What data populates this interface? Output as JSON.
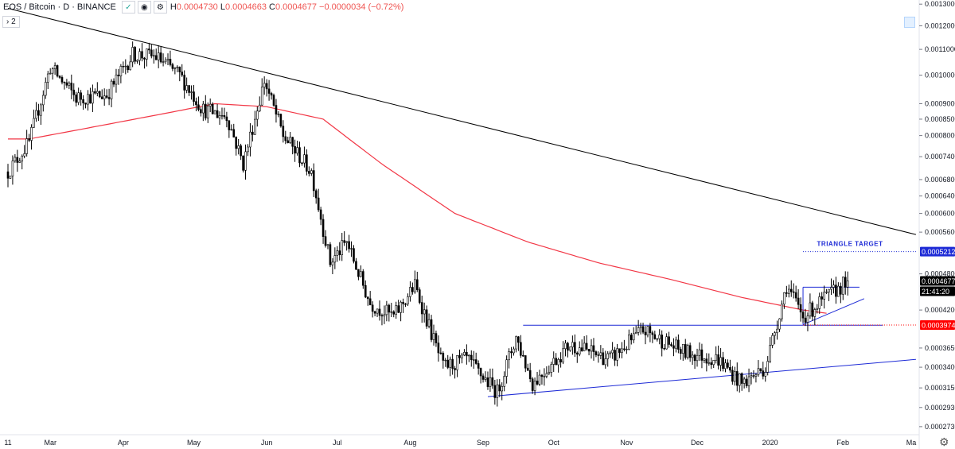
{
  "header": {
    "symbol": "EOS / Bitcoin · D · BINANCE",
    "icons": [
      "check-icon",
      "eye-icon",
      "settings-icon"
    ],
    "ohlc": [
      {
        "key": "H",
        "value": "0.0004730"
      },
      {
        "key": "L",
        "value": "0.0004663"
      },
      {
        "key": "C",
        "value": "0.0004677"
      }
    ],
    "change": "−0.0000034 (−0.72%)",
    "collapse_label": "› 2"
  },
  "colors": {
    "up": "#000000",
    "ma": "#f23645",
    "trend": "#000000",
    "pattern": "#1e2bd6",
    "target": "#1e2bd6",
    "price_badge": "#000000",
    "stop": "#ff0000"
  },
  "chart_data": {
    "type": "candlestick",
    "scale": "log",
    "ylim": [
      0.000265,
      0.00132
    ],
    "xlabel": "",
    "ylabel": "",
    "yticks": [
      "0.0013000",
      "0.0012000",
      "0.0011000",
      "0.0010000",
      "0.0009000",
      "0.0008500",
      "0.0008000",
      "0.0007400",
      "0.0006800",
      "0.0006400",
      "0.0006000",
      "0.0005600",
      "0.0004800",
      "0.0004200",
      "0.0003650",
      "0.0003400",
      "0.0003150",
      "0.0002930",
      "0.0002730"
    ],
    "xticks": [
      "11",
      "Mar",
      "Apr",
      "May",
      "Jun",
      "Jul",
      "Aug",
      "Sep",
      "Oct",
      "Nov",
      "Dec",
      "2020",
      "Feb",
      "Ma"
    ],
    "price_waypoints": [
      {
        "date": "2019-02-11",
        "value": 0.0007
      },
      {
        "date": "2019-02-20",
        "value": 0.00078
      },
      {
        "date": "2019-03-01",
        "value": 0.00103
      },
      {
        "date": "2019-03-12",
        "value": 0.00092
      },
      {
        "date": "2019-03-25",
        "value": 0.00093
      },
      {
        "date": "2019-04-05",
        "value": 0.00108
      },
      {
        "date": "2019-04-15",
        "value": 0.00107
      },
      {
        "date": "2019-04-25",
        "value": 0.001
      },
      {
        "date": "2019-05-05",
        "value": 0.00088
      },
      {
        "date": "2019-05-15",
        "value": 0.00086
      },
      {
        "date": "2019-05-22",
        "value": 0.00072
      },
      {
        "date": "2019-05-31",
        "value": 0.00098
      },
      {
        "date": "2019-06-08",
        "value": 0.0008
      },
      {
        "date": "2019-06-20",
        "value": 0.0007
      },
      {
        "date": "2019-06-28",
        "value": 0.0005
      },
      {
        "date": "2019-07-05",
        "value": 0.00054
      },
      {
        "date": "2019-07-15",
        "value": 0.00043
      },
      {
        "date": "2019-07-25",
        "value": 0.00041
      },
      {
        "date": "2019-08-03",
        "value": 0.00046
      },
      {
        "date": "2019-08-15",
        "value": 0.00034
      },
      {
        "date": "2019-08-25",
        "value": 0.00035
      },
      {
        "date": "2019-09-07",
        "value": 0.00031
      },
      {
        "date": "2019-09-15",
        "value": 0.00038
      },
      {
        "date": "2019-09-22",
        "value": 0.00032
      },
      {
        "date": "2019-10-08",
        "value": 0.00037
      },
      {
        "date": "2019-10-25",
        "value": 0.00035
      },
      {
        "date": "2019-11-08",
        "value": 0.00039
      },
      {
        "date": "2019-11-25",
        "value": 0.00036
      },
      {
        "date": "2019-12-10",
        "value": 0.00035
      },
      {
        "date": "2019-12-20",
        "value": 0.00032
      },
      {
        "date": "2019-12-30",
        "value": 0.00034
      },
      {
        "date": "2020-01-08",
        "value": 0.00046
      },
      {
        "date": "2020-01-15",
        "value": 0.00041
      },
      {
        "date": "2020-01-25",
        "value": 0.00044
      },
      {
        "date": "2020-02-03",
        "value": 0.0004677
      }
    ],
    "ma": [
      {
        "date": "2019-02-11",
        "value": 0.00079
      },
      {
        "date": "2019-02-20",
        "value": 0.00079
      },
      {
        "date": "2019-03-15",
        "value": 0.00082
      },
      {
        "date": "2019-04-20",
        "value": 0.00087
      },
      {
        "date": "2019-05-10",
        "value": 0.0009
      },
      {
        "date": "2019-06-01",
        "value": 0.00089
      },
      {
        "date": "2019-06-25",
        "value": 0.00085
      },
      {
        "date": "2019-07-20",
        "value": 0.00072
      },
      {
        "date": "2019-08-20",
        "value": 0.0006
      },
      {
        "date": "2019-09-20",
        "value": 0.00054
      },
      {
        "date": "2019-10-20",
        "value": 0.0005
      },
      {
        "date": "2019-11-20",
        "value": 0.00047
      },
      {
        "date": "2019-12-20",
        "value": 0.00044
      },
      {
        "date": "2020-01-15",
        "value": 0.00042
      },
      {
        "date": "2020-01-25",
        "value": 0.000415
      }
    ],
    "drawings": {
      "downtrend": [
        {
          "date": "2019-02-11",
          "value": 0.00128
        },
        {
          "date": "2020-03-03",
          "value": 0.000555
        }
      ],
      "triangle_base": [
        {
          "date": "2019-09-03",
          "value": 0.000305
        },
        {
          "date": "2020-03-03",
          "value": 0.00035
        }
      ],
      "breakout_level": [
        {
          "date": "2019-09-18",
          "value": 0.000397
        },
        {
          "date": "2020-02-18",
          "value": 0.000397
        }
      ],
      "upper_box": [
        {
          "date": "2020-01-15",
          "value": 0.000457
        },
        {
          "date": "2020-02-08",
          "value": 0.000457
        }
      ],
      "rising_support": [
        {
          "date": "2020-01-15",
          "value": 0.000398
        },
        {
          "date": "2020-02-10",
          "value": 0.000438
        }
      ],
      "target_level": [
        {
          "date": "2020-01-15",
          "value": 0.0005212
        },
        {
          "date": "2020-03-03",
          "value": 0.0005212
        }
      ],
      "stop_level": [
        {
          "date": "2020-01-15",
          "value": 0.0003974
        },
        {
          "date": "2020-03-03",
          "value": 0.0003974
        }
      ]
    },
    "annotations": [
      {
        "text": "TRIANGLE TARGET",
        "level": 0.000537
      }
    ],
    "price_labels": {
      "target": "0.0005212",
      "last": "0.0004677",
      "countdown": "21:41:20",
      "stop": "0.0003974"
    }
  }
}
